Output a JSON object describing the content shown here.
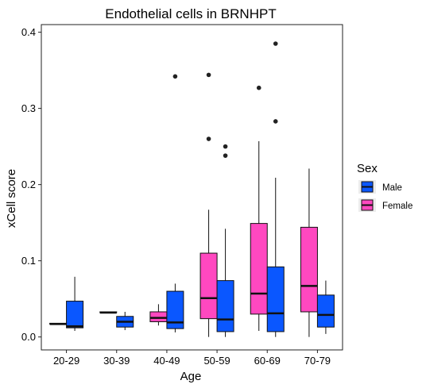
{
  "chart_data": {
    "type": "boxplot",
    "title": "Endothelial cells in BRNHPT",
    "xlabel": "Age",
    "ylabel": "xCell score",
    "categories": [
      "20-29",
      "30-39",
      "40-49",
      "50-59",
      "60-69",
      "70-79"
    ],
    "ylim": [
      -0.017,
      0.41
    ],
    "yticks": [
      0.0,
      0.1,
      0.2,
      0.3,
      0.4
    ],
    "ytick_labels": [
      "0.0",
      "0.1",
      "0.2",
      "0.3",
      "0.4"
    ],
    "grid": false,
    "legend": {
      "title": "Sex",
      "position": "right",
      "entries": [
        "Male",
        "Female"
      ]
    },
    "colors": {
      "Female": "#FF48C0",
      "Male": "#0A57FF",
      "outlier": "#222222",
      "line": "#111111"
    },
    "series": [
      {
        "name": "Female",
        "boxes": [
          {
            "category": "20-29",
            "whisker_low": 0.017,
            "q1": 0.017,
            "median": 0.017,
            "q3": 0.018,
            "whisker_high": 0.018,
            "outliers": []
          },
          {
            "category": "30-39",
            "whisker_low": 0.032,
            "q1": 0.032,
            "median": 0.032,
            "q3": 0.033,
            "whisker_high": 0.033,
            "outliers": []
          },
          {
            "category": "40-49",
            "whisker_low": 0.015,
            "q1": 0.02,
            "median": 0.025,
            "q3": 0.033,
            "whisker_high": 0.043,
            "outliers": []
          },
          {
            "category": "50-59",
            "whisker_low": 0.0,
            "q1": 0.024,
            "median": 0.051,
            "q3": 0.11,
            "whisker_high": 0.167,
            "outliers": [
              0.26,
              0.344
            ]
          },
          {
            "category": "60-69",
            "whisker_low": 0.008,
            "q1": 0.03,
            "median": 0.057,
            "q3": 0.149,
            "whisker_high": 0.257,
            "outliers": [
              0.327
            ]
          },
          {
            "category": "70-79",
            "whisker_low": 0.0,
            "q1": 0.033,
            "median": 0.067,
            "q3": 0.144,
            "whisker_high": 0.221,
            "outliers": []
          }
        ]
      },
      {
        "name": "Male",
        "boxes": [
          {
            "category": "20-29",
            "whisker_low": 0.008,
            "q1": 0.012,
            "median": 0.014,
            "q3": 0.047,
            "whisker_high": 0.079,
            "outliers": []
          },
          {
            "category": "30-39",
            "whisker_low": 0.009,
            "q1": 0.013,
            "median": 0.02,
            "q3": 0.027,
            "whisker_high": 0.033,
            "outliers": []
          },
          {
            "category": "40-49",
            "whisker_low": 0.006,
            "q1": 0.011,
            "median": 0.019,
            "q3": 0.06,
            "whisker_high": 0.07,
            "outliers": [
              0.342
            ]
          },
          {
            "category": "50-59",
            "whisker_low": 0.0,
            "q1": 0.007,
            "median": 0.023,
            "q3": 0.074,
            "whisker_high": 0.142,
            "outliers": [
              0.238,
              0.25
            ]
          },
          {
            "category": "60-69",
            "whisker_low": 0.0,
            "q1": 0.007,
            "median": 0.031,
            "q3": 0.092,
            "whisker_high": 0.209,
            "outliers": [
              0.283,
              0.385
            ]
          },
          {
            "category": "70-79",
            "whisker_low": 0.004,
            "q1": 0.013,
            "median": 0.029,
            "q3": 0.055,
            "whisker_high": 0.074,
            "outliers": []
          }
        ]
      }
    ]
  }
}
